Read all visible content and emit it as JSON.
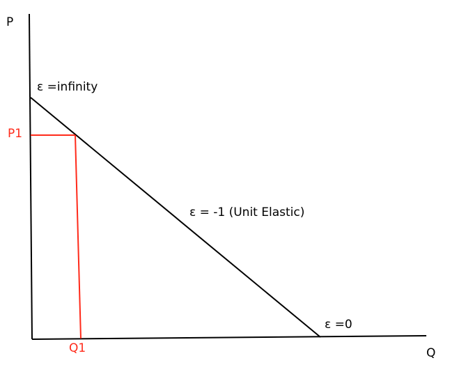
{
  "axes": {
    "y_label": "P",
    "x_label": "Q"
  },
  "markers": {
    "price_label": "P1",
    "quantity_label": "Q1"
  },
  "annotations": {
    "top": "ε =infinity",
    "middle": "ε = -1 (Unit Elastic)",
    "bottom": "ε =0"
  },
  "colors": {
    "axes": "#000000",
    "demand_line": "#000000",
    "markers": "#ff2a1a"
  }
}
